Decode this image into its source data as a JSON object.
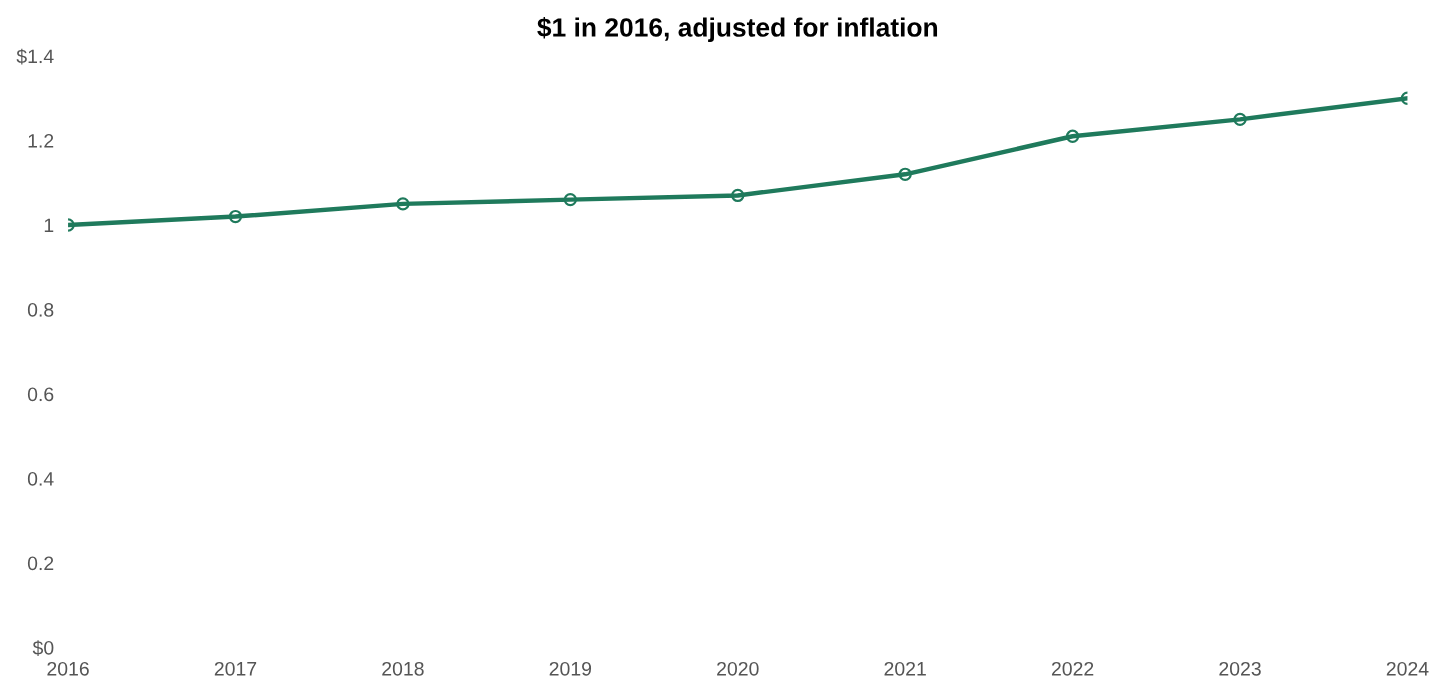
{
  "chart_data": {
    "type": "line",
    "title": "$1 in 2016, adjusted for inflation",
    "x": [
      2016,
      2017,
      2018,
      2019,
      2020,
      2021,
      2022,
      2023,
      2024
    ],
    "series": [
      {
        "color": "#1f7a5c",
        "values": [
          1.0,
          1.02,
          1.05,
          1.06,
          1.07,
          1.12,
          1.21,
          1.25,
          1.3
        ]
      }
    ],
    "xlim": [
      2016,
      2024
    ],
    "xticks": [
      2016,
      2017,
      2018,
      2019,
      2020,
      2021,
      2022,
      2023,
      2024
    ],
    "ylim": [
      0,
      1.4
    ],
    "yticks": [
      {
        "value": 0,
        "label": "$0"
      },
      {
        "value": 0.2,
        "label": "0.2"
      },
      {
        "value": 0.4,
        "label": "0.4"
      },
      {
        "value": 0.6,
        "label": "0.6"
      },
      {
        "value": 0.8,
        "label": "0.8"
      },
      {
        "value": 1,
        "label": "1"
      },
      {
        "value": 1.2,
        "label": "1.2"
      },
      {
        "value": 1.4,
        "label": "$1.4"
      }
    ],
    "marker": "circle",
    "grid": false
  }
}
